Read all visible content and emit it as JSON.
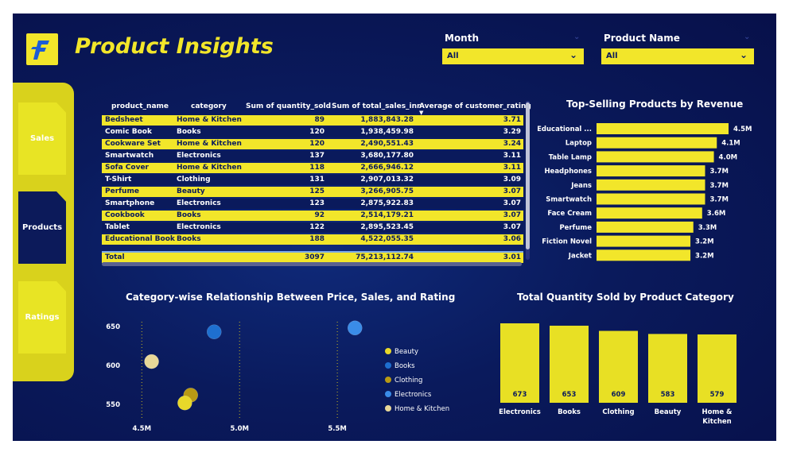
{
  "header": {
    "title": "Product Insights"
  },
  "slicers": [
    {
      "label": "Month",
      "value": "All"
    },
    {
      "label": "Product Name",
      "value": "All"
    }
  ],
  "nav": [
    {
      "label": "Sales",
      "active": false
    },
    {
      "label": "Products",
      "active": true
    },
    {
      "label": "Ratings",
      "active": false
    }
  ],
  "table": {
    "columns": [
      "product_name",
      "category",
      "Sum of quantity_sold",
      "Sum of total_sales_inr",
      "Average of customer_rating"
    ],
    "rows": [
      [
        "Bedsheet",
        "Home & Kitchen",
        "89",
        "1,883,843.28",
        "3.71"
      ],
      [
        "Comic Book",
        "Books",
        "120",
        "1,938,459.98",
        "3.29"
      ],
      [
        "Cookware Set",
        "Home & Kitchen",
        "120",
        "2,490,551.43",
        "3.24"
      ],
      [
        "Smartwatch",
        "Electronics",
        "137",
        "3,680,177.80",
        "3.11"
      ],
      [
        "Sofa Cover",
        "Home & Kitchen",
        "118",
        "2,666,946.12",
        "3.11"
      ],
      [
        "T-Shirt",
        "Clothing",
        "131",
        "2,907,013.32",
        "3.09"
      ],
      [
        "Perfume",
        "Beauty",
        "125",
        "3,266,905.75",
        "3.07"
      ],
      [
        "Smartphone",
        "Electronics",
        "123",
        "2,875,922.83",
        "3.07"
      ],
      [
        "Cookbook",
        "Books",
        "92",
        "2,514,179.21",
        "3.07"
      ],
      [
        "Tablet",
        "Electronics",
        "122",
        "2,895,523.45",
        "3.07"
      ],
      [
        "Educational Book",
        "Books",
        "188",
        "4,522,055.35",
        "3.06"
      ]
    ],
    "total": [
      "Total",
      "",
      "3097",
      "75,213,112.74",
      "3.01"
    ]
  },
  "chart_data": [
    {
      "type": "bar",
      "orientation": "horizontal",
      "title": "Top-Selling Products by Revenue",
      "categories": [
        "Educational ...",
        "Laptop",
        "Table Lamp",
        "Headphones",
        "Jeans",
        "Smartwatch",
        "Face Cream",
        "Perfume",
        "Fiction Novel",
        "Jacket"
      ],
      "values": [
        4.5,
        4.1,
        4.0,
        3.7,
        3.7,
        3.7,
        3.6,
        3.3,
        3.2,
        3.2
      ],
      "labels": [
        "4.5M",
        "4.1M",
        "4.0M",
        "3.7M",
        "3.7M",
        "3.7M",
        "3.6M",
        "3.3M",
        "3.2M",
        "3.2M"
      ],
      "color": "#f2e62a"
    },
    {
      "type": "scatter",
      "title": "Category-wise Relationship Between Price, Sales, and Rating",
      "xticks": [
        "4.5M",
        "5.0M",
        "5.5M"
      ],
      "xtick_values": [
        4.5,
        5.0,
        5.5
      ],
      "yticks": [
        "650",
        "600",
        "550"
      ],
      "ytick_values": [
        650,
        600,
        550
      ],
      "xlim": [
        4.45,
        5.65
      ],
      "ylim": [
        540,
        660
      ],
      "legend": [
        {
          "name": "Beauty",
          "color": "#e8d82a"
        },
        {
          "name": "Books",
          "color": "#1e6fd0"
        },
        {
          "name": "Clothing",
          "color": "#b89a14"
        },
        {
          "name": "Electronics",
          "color": "#3a8ce8"
        },
        {
          "name": "Home & Kitchen",
          "color": "#e8d898"
        }
      ],
      "points": [
        {
          "series": "Books",
          "x": 4.87,
          "y": 643,
          "color": "#1e6fd0"
        },
        {
          "series": "Electronics",
          "x": 5.59,
          "y": 648,
          "color": "#3a8ce8"
        },
        {
          "series": "Home & Kitchen",
          "x": 4.55,
          "y": 605,
          "color": "#e8d898"
        },
        {
          "series": "Clothing",
          "x": 4.75,
          "y": 562,
          "color": "#b89a14"
        },
        {
          "series": "Beauty",
          "x": 4.72,
          "y": 552,
          "color": "#e8d82a"
        }
      ]
    },
    {
      "type": "bar",
      "title": "Total Quantity Sold by Product Category",
      "categories": [
        "Electronics",
        "Books",
        "Clothing",
        "Beauty",
        "Home & Kitchen"
      ],
      "values": [
        673,
        653,
        609,
        583,
        579
      ],
      "ylim": [
        0,
        673
      ],
      "color": "#e8e024"
    }
  ]
}
